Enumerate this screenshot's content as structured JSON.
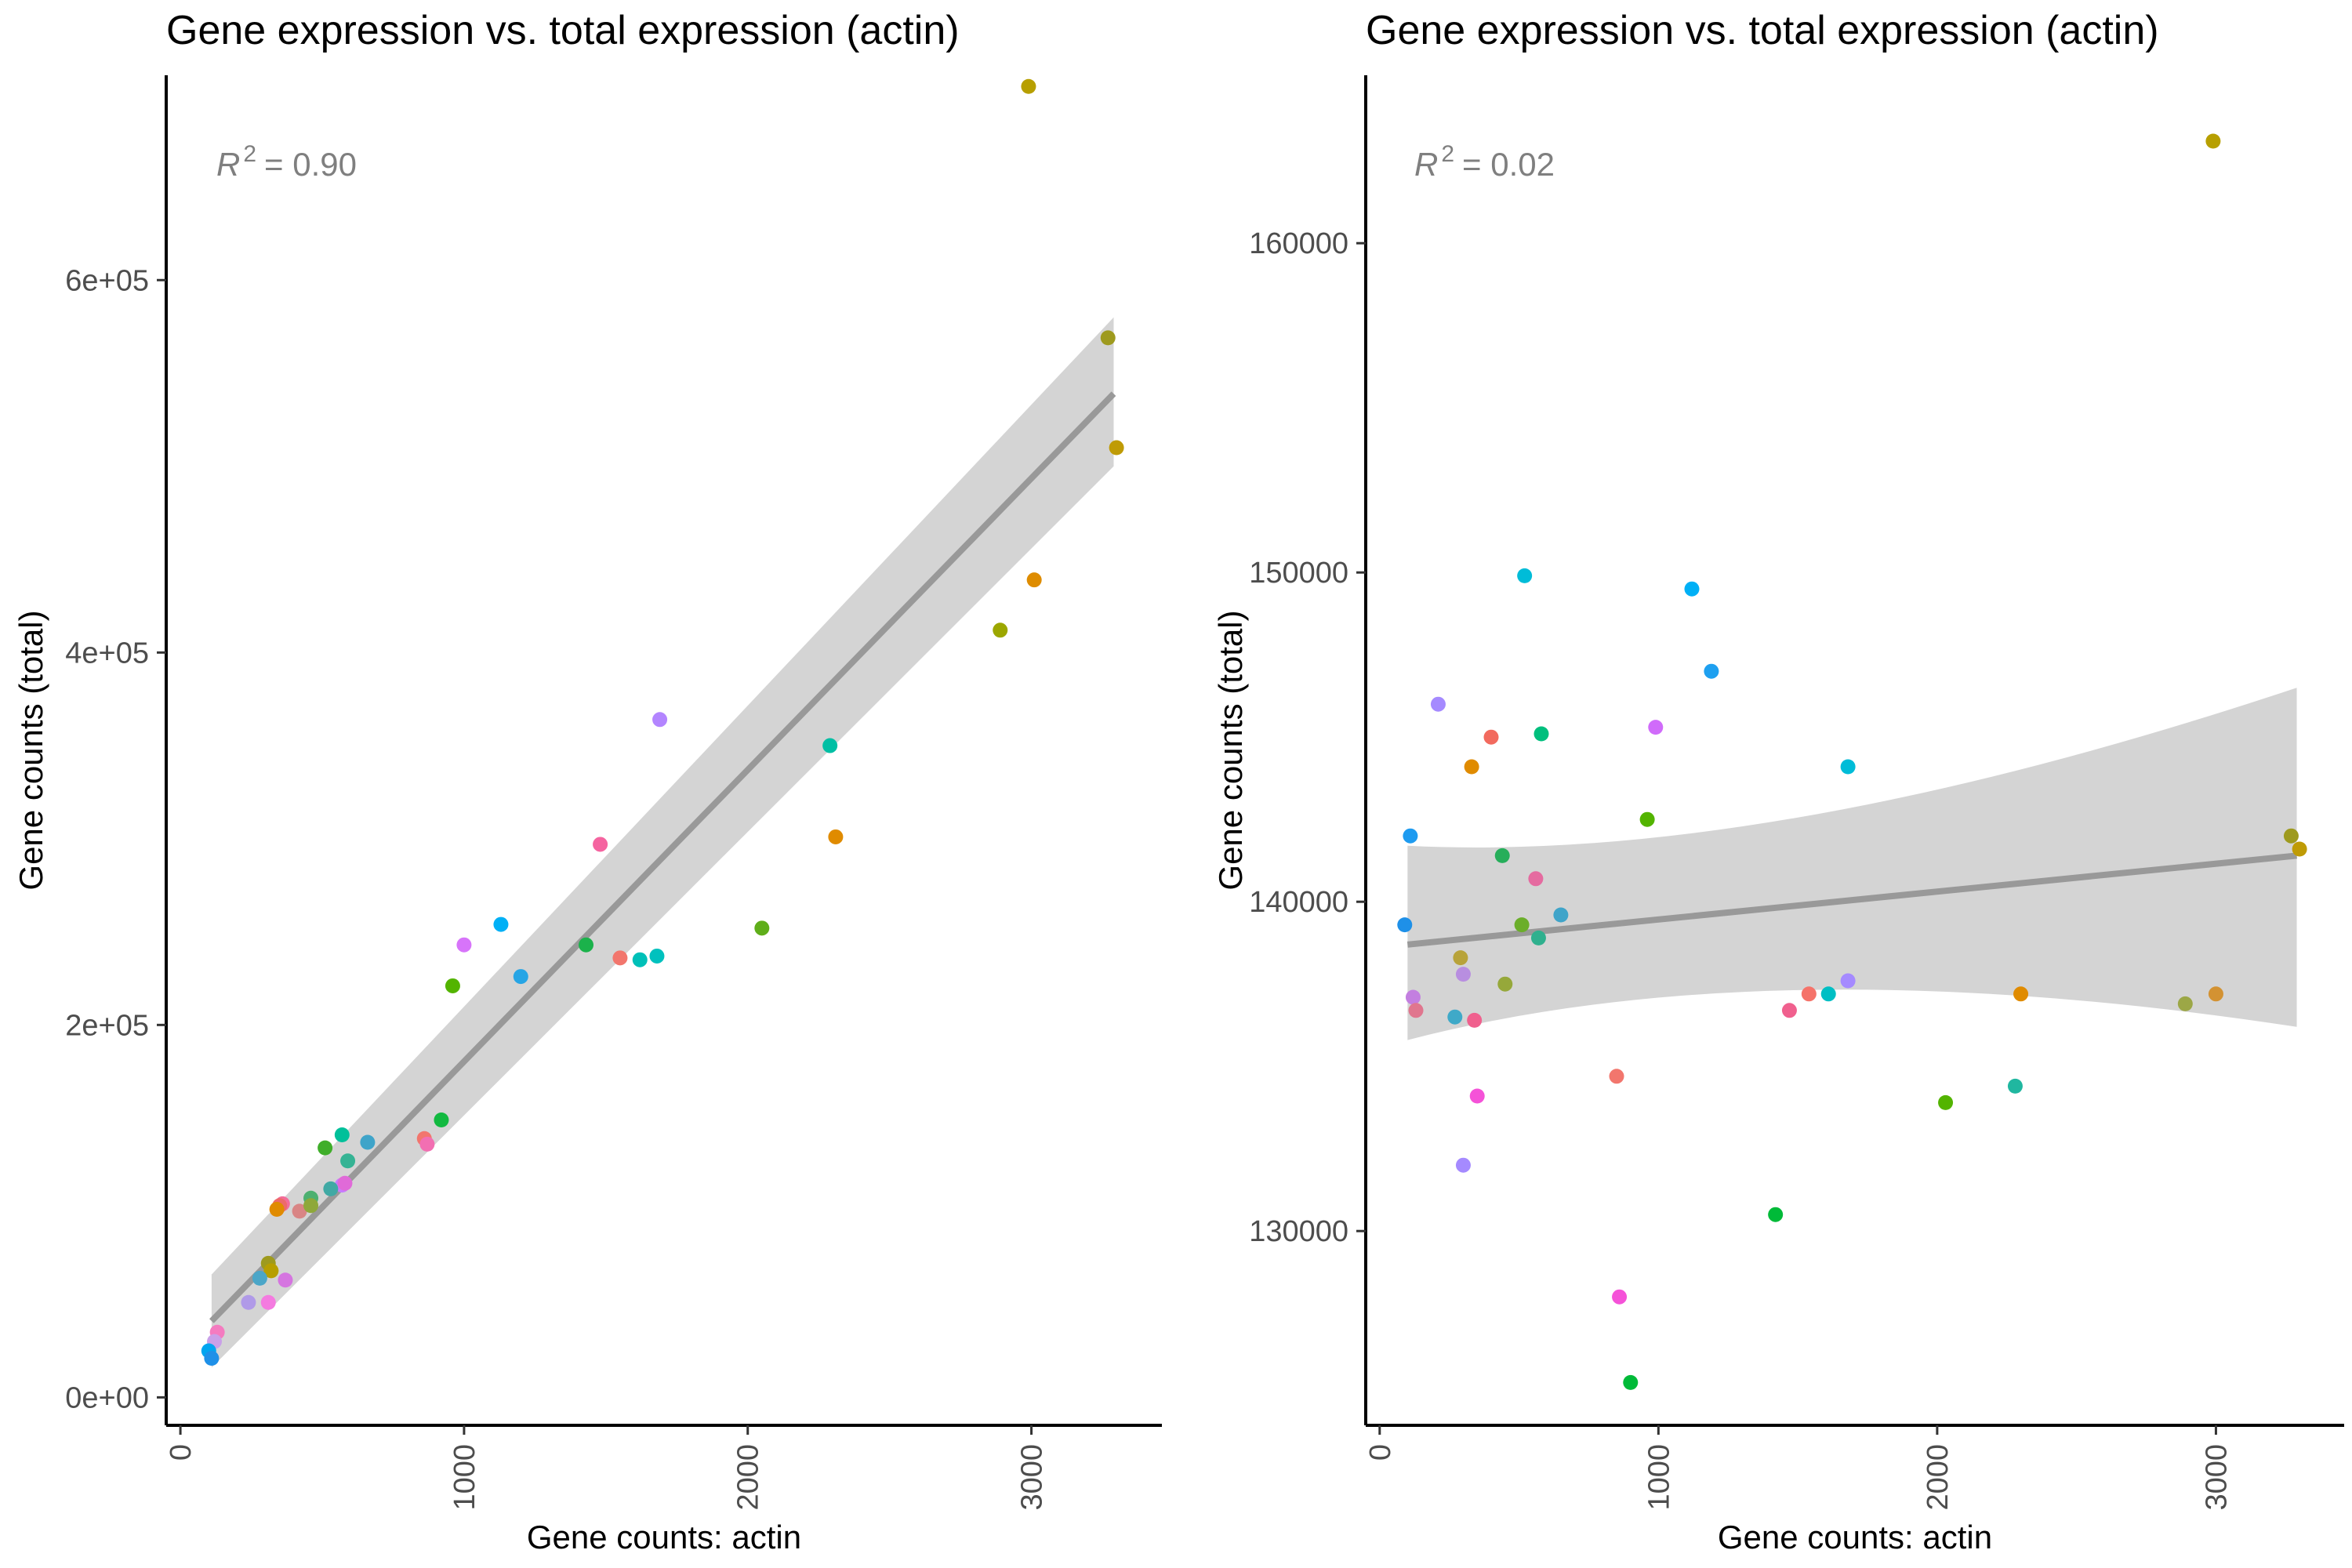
{
  "chart_data": [
    {
      "type": "scatter",
      "title": "Gene expression vs. total expression (actin)",
      "xlabel": "Gene counts: actin",
      "ylabel": "Gene counts (total)",
      "xlim": [
        -50,
        3460
      ],
      "ylim": [
        -15000,
        710000
      ],
      "x_ticks": [
        0,
        1000,
        2000,
        3000
      ],
      "x_tick_labels": [
        "0",
        "1000",
        "2000",
        "3000"
      ],
      "y_ticks": [
        0,
        200000,
        400000,
        600000
      ],
      "y_tick_labels": [
        "0e+00",
        "2e+05",
        "4e+05",
        "6e+05"
      ],
      "annotation": {
        "r2_label": "R",
        "r2_sup": "2",
        "r2_value": "= 0.90"
      },
      "trend_line": {
        "x": [
          110,
          3290
        ],
        "y": [
          41000,
          539000
        ],
        "ci_lower": [
          16000,
          500000
        ],
        "ci_upper": [
          66000,
          580000
        ]
      },
      "grid": false,
      "legend": "none",
      "points": [
        {
          "x": 2990,
          "y": 704000,
          "color": "#B79F00"
        },
        {
          "x": 3270,
          "y": 569000,
          "color": "#9E9A1E"
        },
        {
          "x": 3300,
          "y": 510000,
          "color": "#BF9B05"
        },
        {
          "x": 3010,
          "y": 439000,
          "color": "#DE8C00"
        },
        {
          "x": 2890,
          "y": 412000,
          "color": "#9CA700"
        },
        {
          "x": 1690,
          "y": 364000,
          "color": "#B385FF"
        },
        {
          "x": 2290,
          "y": 350000,
          "color": "#00BFA4"
        },
        {
          "x": 2310,
          "y": 301000,
          "color": "#E08B00"
        },
        {
          "x": 1480,
          "y": 297000,
          "color": "#F564A0"
        },
        {
          "x": 1130,
          "y": 254000,
          "color": "#00B0F6"
        },
        {
          "x": 2050,
          "y": 252000,
          "color": "#5FAE1A"
        },
        {
          "x": 1000,
          "y": 243000,
          "color": "#D774FA"
        },
        {
          "x": 1430,
          "y": 243000,
          "color": "#1BB24B"
        },
        {
          "x": 1680,
          "y": 237000,
          "color": "#00C1BE"
        },
        {
          "x": 1550,
          "y": 236000,
          "color": "#F2766D"
        },
        {
          "x": 1620,
          "y": 235000,
          "color": "#00C0B8"
        },
        {
          "x": 1200,
          "y": 226000,
          "color": "#27A5E5"
        },
        {
          "x": 960,
          "y": 221000,
          "color": "#53B400"
        },
        {
          "x": 920,
          "y": 149000,
          "color": "#12B940"
        },
        {
          "x": 570,
          "y": 141000,
          "color": "#00C09A"
        },
        {
          "x": 860,
          "y": 139000,
          "color": "#F2766D"
        },
        {
          "x": 660,
          "y": 137000,
          "color": "#3FA4C9"
        },
        {
          "x": 870,
          "y": 136000,
          "color": "#F26FB2"
        },
        {
          "x": 510,
          "y": 134000,
          "color": "#3FAE2A"
        },
        {
          "x": 590,
          "y": 127000,
          "color": "#35B394"
        },
        {
          "x": 570,
          "y": 114000,
          "color": "#C77CFF"
        },
        {
          "x": 530,
          "y": 112000,
          "color": "#40A9A4"
        },
        {
          "x": 460,
          "y": 107000,
          "color": "#4CB070"
        },
        {
          "x": 360,
          "y": 104000,
          "color": "#F36D9A"
        },
        {
          "x": 350,
          "y": 103000,
          "color": "#ED6A6A"
        },
        {
          "x": 340,
          "y": 101000,
          "color": "#E08B00"
        },
        {
          "x": 420,
          "y": 100000,
          "color": "#D98585"
        },
        {
          "x": 460,
          "y": 103000,
          "color": "#8EA83A"
        },
        {
          "x": 580,
          "y": 115000,
          "color": "#E06AD8"
        },
        {
          "x": 310,
          "y": 72000,
          "color": "#9E9A1E"
        },
        {
          "x": 320,
          "y": 68000,
          "color": "#B79F00"
        },
        {
          "x": 280,
          "y": 64000,
          "color": "#4BA6C8"
        },
        {
          "x": 370,
          "y": 63000,
          "color": "#D575E0"
        },
        {
          "x": 240,
          "y": 51000,
          "color": "#B09AE8"
        },
        {
          "x": 310,
          "y": 51000,
          "color": "#F47BE0"
        },
        {
          "x": 130,
          "y": 35000,
          "color": "#F47BC0"
        },
        {
          "x": 120,
          "y": 30000,
          "color": "#C9A0E8"
        },
        {
          "x": 100,
          "y": 25000,
          "color": "#00A5F0"
        },
        {
          "x": 110,
          "y": 21000,
          "color": "#1E90E8"
        }
      ]
    },
    {
      "type": "scatter",
      "title": "Gene expression vs. total expression (actin)",
      "xlabel": "Gene counts: actin",
      "ylabel": "Gene counts (total)",
      "xlim": [
        -50,
        3460
      ],
      "ylim": [
        124100,
        165100
      ],
      "x_ticks": [
        0,
        1000,
        2000,
        3000
      ],
      "x_tick_labels": [
        "0",
        "1000",
        "2000",
        "3000"
      ],
      "y_ticks": [
        130000,
        140000,
        150000,
        160000
      ],
      "y_tick_labels": [
        "130000",
        "140000",
        "150000",
        "160000"
      ],
      "annotation": {
        "r2_label": "R",
        "r2_sup": "2",
        "r2_value": "= 0.02"
      },
      "trend_line": {
        "x": [
          100,
          3290
        ],
        "y": [
          138700,
          141400
        ],
        "ci_lower": [
          135800,
          136200
        ],
        "ci_upper": [
          141700,
          146500
        ]
      },
      "grid": false,
      "legend": "none",
      "points": [
        {
          "x": 2990,
          "y": 163100,
          "color": "#B79F00"
        },
        {
          "x": 520,
          "y": 149900,
          "color": "#00BCD8"
        },
        {
          "x": 1120,
          "y": 149500,
          "color": "#00B0F6"
        },
        {
          "x": 1190,
          "y": 147000,
          "color": "#1EA0F0"
        },
        {
          "x": 210,
          "y": 146000,
          "color": "#A58AFF"
        },
        {
          "x": 990,
          "y": 145300,
          "color": "#D06BFA"
        },
        {
          "x": 580,
          "y": 145100,
          "color": "#00BF7D"
        },
        {
          "x": 400,
          "y": 145000,
          "color": "#F26A5E"
        },
        {
          "x": 330,
          "y": 144100,
          "color": "#E08B00"
        },
        {
          "x": 1680,
          "y": 144100,
          "color": "#00BCD8"
        },
        {
          "x": 960,
          "y": 142500,
          "color": "#53B400"
        },
        {
          "x": 110,
          "y": 142000,
          "color": "#1E9BF0"
        },
        {
          "x": 3270,
          "y": 142000,
          "color": "#9E9A1E"
        },
        {
          "x": 3300,
          "y": 141600,
          "color": "#BF9B05"
        },
        {
          "x": 440,
          "y": 141400,
          "color": "#26AE5A"
        },
        {
          "x": 560,
          "y": 140700,
          "color": "#E56BA0"
        },
        {
          "x": 650,
          "y": 139600,
          "color": "#3FA4C9"
        },
        {
          "x": 90,
          "y": 139300,
          "color": "#1E90E8"
        },
        {
          "x": 510,
          "y": 139300,
          "color": "#6BAE2A"
        },
        {
          "x": 570,
          "y": 138900,
          "color": "#2FB08E"
        },
        {
          "x": 290,
          "y": 138300,
          "color": "#B8A33A"
        },
        {
          "x": 300,
          "y": 137800,
          "color": "#B88EE0"
        },
        {
          "x": 450,
          "y": 137500,
          "color": "#96A83A"
        },
        {
          "x": 1680,
          "y": 137600,
          "color": "#A58AFF"
        },
        {
          "x": 1610,
          "y": 137200,
          "color": "#00BFC4"
        },
        {
          "x": 1540,
          "y": 137200,
          "color": "#F5736A"
        },
        {
          "x": 2300,
          "y": 137200,
          "color": "#E08B00"
        },
        {
          "x": 3000,
          "y": 137200,
          "color": "#D39232"
        },
        {
          "x": 120,
          "y": 137100,
          "color": "#C37FE0"
        },
        {
          "x": 130,
          "y": 136700,
          "color": "#E0768E"
        },
        {
          "x": 1470,
          "y": 136700,
          "color": "#F0608E"
        },
        {
          "x": 2890,
          "y": 136900,
          "color": "#9CA746"
        },
        {
          "x": 270,
          "y": 136500,
          "color": "#3FA9C8"
        },
        {
          "x": 340,
          "y": 136400,
          "color": "#F0608E"
        },
        {
          "x": 850,
          "y": 134700,
          "color": "#F2766D"
        },
        {
          "x": 2280,
          "y": 134400,
          "color": "#20B7A0"
        },
        {
          "x": 350,
          "y": 134100,
          "color": "#F552D8"
        },
        {
          "x": 2030,
          "y": 133900,
          "color": "#53B400"
        },
        {
          "x": 300,
          "y": 132000,
          "color": "#A58AFF"
        },
        {
          "x": 1420,
          "y": 130500,
          "color": "#00BA38"
        },
        {
          "x": 860,
          "y": 128000,
          "color": "#F552D8"
        },
        {
          "x": 900,
          "y": 125400,
          "color": "#00BA38"
        }
      ]
    }
  ]
}
